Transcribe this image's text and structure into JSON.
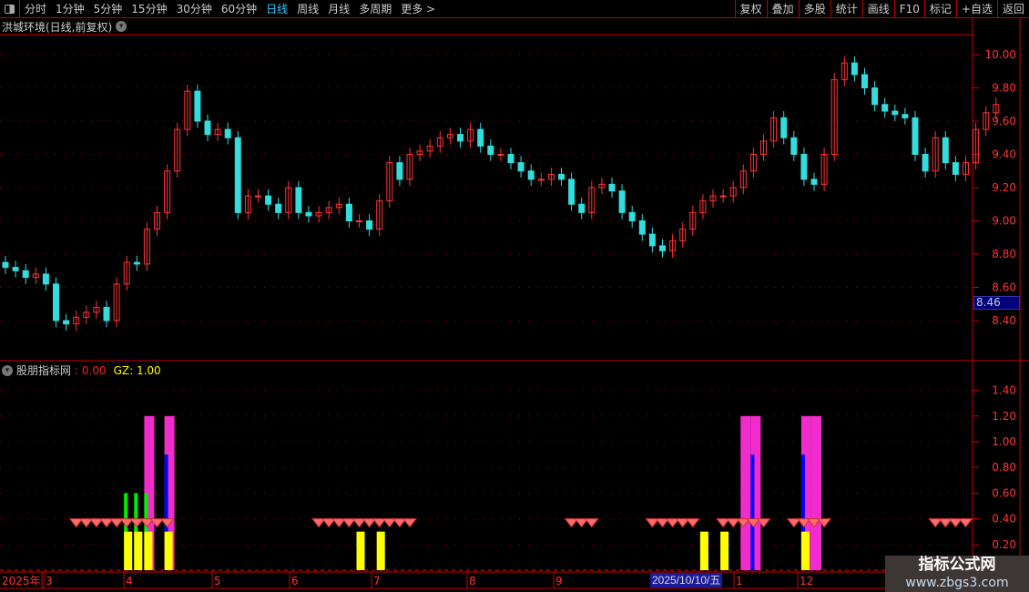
{
  "toolbar": {
    "periods": [
      "分时",
      "1分钟",
      "5分钟",
      "15分钟",
      "30分钟",
      "60分钟",
      "日线",
      "周线",
      "月线",
      "多周期",
      "更多 >"
    ],
    "active": "日线",
    "actions": [
      "复权",
      "叠加",
      "多股",
      "统计",
      "画线",
      "F10",
      "标记",
      "+自选",
      "返回"
    ]
  },
  "main": {
    "title": "洪城环境(日线,前复权)",
    "current_price": "8.46"
  },
  "indicator": {
    "name": "股朋指标网",
    "value1": ": 0.00",
    "value2": "GZ: 1.00"
  },
  "colors": {
    "up": "#ff3333",
    "down": "#33dddd",
    "axis": "#ff3333",
    "yellow": "#ffff00",
    "green": "#00ee00",
    "magenta": "#f22ccc",
    "blue": "#0000ff",
    "diamond": "#ff6a6a"
  },
  "chart_data": [
    {
      "type": "candlestick",
      "ylim": [
        8.25,
        10.15
      ],
      "yticks": [
        "10.00",
        "9.80",
        "9.60",
        "9.40",
        "9.20",
        "9.00",
        "8.80",
        "8.60",
        "8.40"
      ],
      "closes": [
        8.72,
        8.7,
        8.66,
        8.68,
        8.62,
        8.4,
        8.38,
        8.42,
        8.45,
        8.48,
        8.4,
        8.62,
        8.75,
        8.74,
        8.95,
        9.05,
        9.3,
        9.55,
        9.78,
        9.6,
        9.52,
        9.55,
        9.5,
        9.05,
        9.15,
        9.15,
        9.1,
        9.05,
        9.2,
        9.05,
        9.03,
        9.05,
        9.08,
        9.1,
        9.0,
        9.0,
        8.95,
        9.12,
        9.35,
        9.25,
        9.4,
        9.42,
        9.45,
        9.5,
        9.52,
        9.48,
        9.55,
        9.45,
        9.4,
        9.4,
        9.35,
        9.3,
        9.25,
        9.25,
        9.28,
        9.25,
        9.1,
        9.05,
        9.2,
        9.22,
        9.18,
        9.05,
        9.0,
        8.92,
        8.85,
        8.82,
        8.88,
        8.95,
        9.05,
        9.12,
        9.15,
        9.15,
        9.2,
        9.3,
        9.4,
        9.48,
        9.62,
        9.5,
        9.4,
        9.25,
        9.22,
        9.4,
        9.85,
        9.95,
        9.88,
        9.8,
        9.7,
        9.66,
        9.64,
        9.62,
        9.4,
        9.3,
        9.5,
        9.35,
        9.28,
        9.35,
        9.55,
        9.65,
        9.7
      ]
    },
    {
      "type": "bar",
      "ylim": [
        0,
        1.55
      ],
      "yticks": [
        "1.40",
        "1.20",
        "1.00",
        "0.80",
        "0.60",
        "0.40",
        "0.20"
      ],
      "series": [
        {
          "color": "magenta",
          "value": 1.2,
          "index": [
            14,
            16,
            73,
            74,
            79,
            80
          ]
        },
        {
          "color": "green",
          "value": 0.6,
          "index": [
            12,
            13,
            14,
            16
          ]
        },
        {
          "color": "blue",
          "value": 0.9,
          "index": [
            16,
            74,
            79
          ]
        },
        {
          "color": "yellow",
          "value": 0.3,
          "index": [
            12,
            13,
            14,
            16,
            35,
            37,
            69,
            71,
            79
          ]
        },
        {
          "color": "diamond",
          "value": 0.4,
          "index": [
            7,
            8,
            9,
            10,
            11,
            12,
            13,
            14,
            15,
            16,
            31,
            32,
            33,
            34,
            35,
            36,
            37,
            38,
            39,
            40,
            56,
            57,
            58,
            64,
            65,
            66,
            67,
            68,
            71,
            72,
            73,
            74,
            75,
            78,
            79,
            80,
            81,
            92,
            93,
            94,
            95
          ]
        }
      ]
    }
  ],
  "date_axis": {
    "labels": [
      "2025年",
      "3",
      "4",
      "5",
      "6",
      "7",
      "8",
      "9",
      "1",
      "12"
    ],
    "cursor_date": "2025/10/10/五"
  },
  "watermark": {
    "title": "指标公式网",
    "url": "www.zbgs3.com"
  }
}
